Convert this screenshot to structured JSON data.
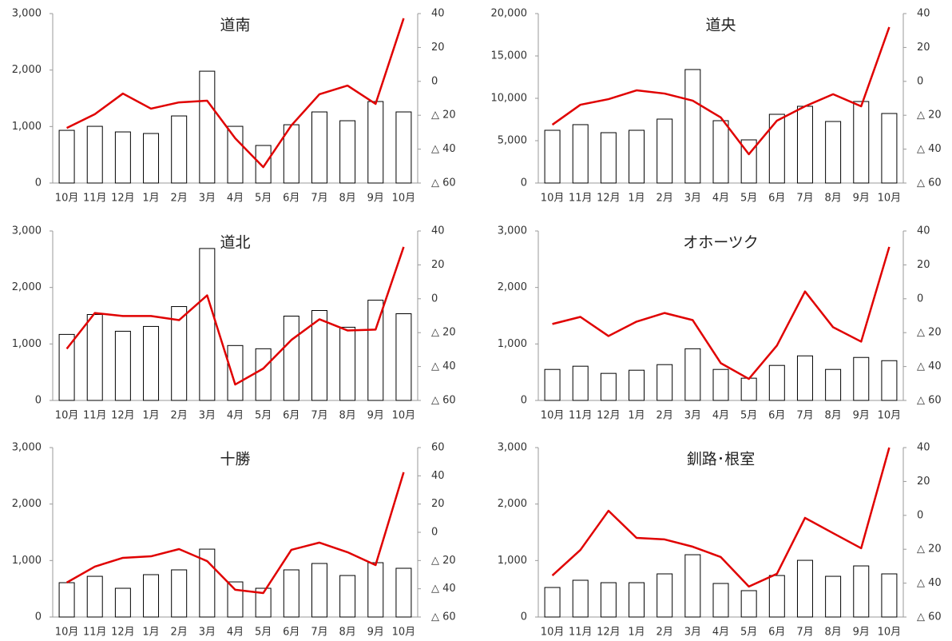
{
  "chart_data": [
    {
      "type": "combo",
      "title": "道南",
      "categories": [
        "10月",
        "11月",
        "12月",
        "1月",
        "2月",
        "3月",
        "4月",
        "5月",
        "6月",
        "7月",
        "8月",
        "9月",
        "10月"
      ],
      "ylim": [
        0,
        3000
      ],
      "yticks": [
        0,
        {
          "value": 1000,
          "label": "1,000"
        },
        {
          "value": 2000,
          "label": "2,000"
        },
        {
          "value": 3000,
          "label": "3,000"
        }
      ],
      "y2lim": [
        -60,
        40
      ],
      "y2ticks": [
        {
          "value": -60,
          "label": "△ 60"
        },
        {
          "value": -40,
          "label": "△ 40"
        },
        {
          "value": -20,
          "label": "△ 20"
        },
        0,
        20,
        40
      ],
      "series": [
        {
          "type": "bar",
          "color": "#ffffff",
          "values": [
            933,
            1004,
            905,
            877,
            1188,
            1980,
            1004,
            665,
            1032,
            1259,
            1103,
            1443,
            1259
          ]
        },
        {
          "type": "line",
          "axis": "y2",
          "color": "#e00000",
          "values": [
            -27.5,
            -19.4,
            -7.2,
            -16.1,
            -12.4,
            -11.4,
            -33.6,
            -50.6,
            -26,
            -7.6,
            -2.5,
            -13.3,
            37.2
          ]
        }
      ]
    },
    {
      "type": "combo",
      "title": "道央",
      "categories": [
        "10月",
        "11月",
        "12月",
        "1月",
        "2月",
        "3月",
        "4月",
        "5月",
        "6月",
        "7月",
        "8月",
        "9月",
        "10月"
      ],
      "ylim": [
        0,
        20000
      ],
      "yticks": [
        0,
        {
          "value": 5000,
          "label": "5,000"
        },
        {
          "value": 10000,
          "label": "10,000"
        },
        {
          "value": 15000,
          "label": "15,000"
        },
        {
          "value": 20000,
          "label": "20,000"
        }
      ],
      "y2lim": [
        -60,
        40
      ],
      "y2ticks": [
        {
          "value": -60,
          "label": "△ 60"
        },
        {
          "value": -40,
          "label": "△ 40"
        },
        {
          "value": -20,
          "label": "△ 20"
        },
        0,
        20,
        40
      ],
      "series": [
        {
          "type": "bar",
          "color": "#ffffff",
          "values": [
            6226,
            6890,
            5943,
            6226,
            7547,
            13396,
            7358,
            5094,
            8113,
            9057,
            7264,
            9623,
            8208
          ]
        },
        {
          "type": "line",
          "axis": "y2",
          "color": "#e00000",
          "values": [
            -25.6,
            -13.8,
            -10.5,
            -5.3,
            -7.2,
            -11.4,
            -21.3,
            -43,
            -23.2,
            -14.7,
            -7.6,
            -14.7,
            32
          ]
        }
      ]
    },
    {
      "type": "combo",
      "title": "道北",
      "categories": [
        "10月",
        "11月",
        "12月",
        "1月",
        "2月",
        "3月",
        "4月",
        "5月",
        "6月",
        "7月",
        "8月",
        "9月",
        "10月"
      ],
      "ylim": [
        0,
        3000
      ],
      "yticks": [
        0,
        {
          "value": 1000,
          "label": "1,000"
        },
        {
          "value": 2000,
          "label": "2,000"
        },
        {
          "value": 3000,
          "label": "3,000"
        }
      ],
      "y2lim": [
        -60,
        40
      ],
      "y2ticks": [
        {
          "value": -60,
          "label": "△ 60"
        },
        {
          "value": -40,
          "label": "△ 40"
        },
        {
          "value": -20,
          "label": "△ 20"
        },
        0,
        20,
        40
      ],
      "series": [
        {
          "type": "bar",
          "color": "#ffffff",
          "values": [
            1169,
            1521,
            1225,
            1310,
            1662,
            2690,
            972,
            915,
            1493,
            1592,
            1296,
            1775,
            1535
          ]
        },
        {
          "type": "line",
          "axis": "y2",
          "color": "#e00000",
          "values": [
            -29.5,
            -8.4,
            -10.2,
            -10.2,
            -12.6,
            2,
            -50.6,
            -41.2,
            -24.3,
            -12.1,
            -18.7,
            -18.2,
            30.6
          ]
        }
      ]
    },
    {
      "type": "combo",
      "title": "オホーツク",
      "categories": [
        "10月",
        "11月",
        "12月",
        "1月",
        "2月",
        "3月",
        "4月",
        "5月",
        "6月",
        "7月",
        "8月",
        "9月",
        "10月"
      ],
      "ylim": [
        0,
        3000
      ],
      "yticks": [
        0,
        {
          "value": 1000,
          "label": "1,000"
        },
        {
          "value": 2000,
          "label": "2,000"
        },
        {
          "value": 3000,
          "label": "3,000"
        }
      ],
      "y2lim": [
        -60,
        40
      ],
      "y2ticks": [
        {
          "value": -60,
          "label": "△ 60"
        },
        {
          "value": -40,
          "label": "△ 40"
        },
        {
          "value": -20,
          "label": "△ 20"
        },
        0,
        20,
        40
      ],
      "series": [
        {
          "type": "bar",
          "color": "#ffffff",
          "values": [
            549,
            606,
            479,
            535,
            634,
            915,
            549,
            394,
            620,
            789,
            549,
            761,
            704
          ]
        },
        {
          "type": "line",
          "axis": "y2",
          "color": "#e00000",
          "values": [
            -14.9,
            -10.7,
            -22,
            -13.5,
            -8.4,
            -12.6,
            -38,
            -47.3,
            -27.6,
            4.3,
            -16.8,
            -25.3,
            30.6
          ]
        }
      ]
    },
    {
      "type": "combo",
      "title": "十勝",
      "categories": [
        "10月",
        "11月",
        "12月",
        "1月",
        "2月",
        "3月",
        "4月",
        "5月",
        "6月",
        "7月",
        "8月",
        "9月",
        "10月"
      ],
      "ylim": [
        0,
        3000
      ],
      "yticks": [
        0,
        {
          "value": 1000,
          "label": "1,000"
        },
        {
          "value": 2000,
          "label": "2,000"
        },
        {
          "value": 3000,
          "label": "3,000"
        }
      ],
      "y2lim": [
        -60,
        60
      ],
      "y2ticks": [
        {
          "value": -60,
          "label": "△ 60"
        },
        {
          "value": -40,
          "label": "△ 40"
        },
        {
          "value": -20,
          "label": "△ 20"
        },
        0,
        20,
        40,
        60
      ],
      "series": [
        {
          "type": "bar",
          "color": "#ffffff",
          "values": [
            608,
            721,
            509,
            750,
            835,
            1202,
            622,
            509,
            835,
            948,
            735,
            962,
            863
          ]
        },
        {
          "type": "line",
          "axis": "y2",
          "color": "#e00000",
          "values": [
            -35.6,
            -24.3,
            -18.1,
            -17,
            -11.9,
            -20.4,
            -40.7,
            -43,
            -12.4,
            -7.3,
            -14.1,
            -23.2,
            42.5
          ]
        }
      ]
    },
    {
      "type": "combo",
      "title": "釧路･根室",
      "categories": [
        "10月",
        "11月",
        "12月",
        "1月",
        "2月",
        "3月",
        "4月",
        "5月",
        "6月",
        "7月",
        "8月",
        "9月",
        "10月"
      ],
      "ylim": [
        0,
        3000
      ],
      "yticks": [
        0,
        {
          "value": 1000,
          "label": "1,000"
        },
        {
          "value": 2000,
          "label": "2,000"
        },
        {
          "value": 3000,
          "label": "3,000"
        }
      ],
      "y2lim": [
        -60,
        40
      ],
      "y2ticks": [
        {
          "value": -60,
          "label": "△ 60"
        },
        {
          "value": -40,
          "label": "△ 40"
        },
        {
          "value": -20,
          "label": "△ 20"
        },
        0,
        20,
        40
      ],
      "series": [
        {
          "type": "bar",
          "color": "#ffffff",
          "values": [
            523,
            651,
            608,
            608,
            764,
            1103,
            594,
            467,
            735,
            1004,
            721,
            905,
            764
          ]
        },
        {
          "type": "line",
          "axis": "y2",
          "color": "#e00000",
          "values": [
            -35.5,
            -20.4,
            2.7,
            -13.3,
            -14.2,
            -18.5,
            -24.6,
            -42,
            -34.5,
            -1.5,
            -10.5,
            -19.4,
            40
          ]
        }
      ]
    }
  ]
}
